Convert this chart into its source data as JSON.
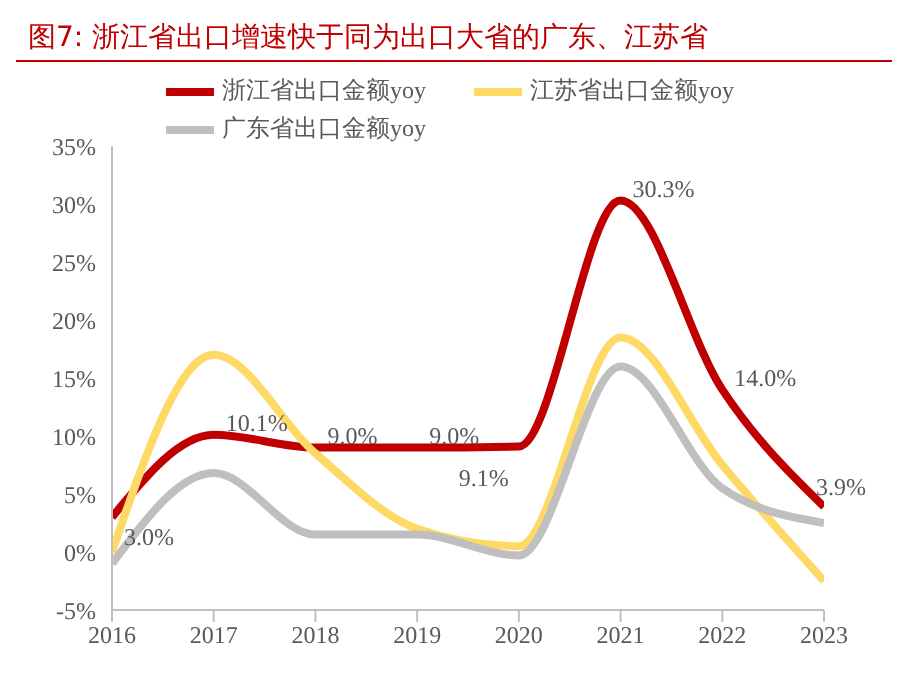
{
  "chart_data": {
    "type": "line",
    "title": "图7:   浙江省出口增速快于同为出口大省的广东、江苏省",
    "categories": [
      "2016",
      "2017",
      "2018",
      "2019",
      "2020",
      "2021",
      "2022",
      "2023"
    ],
    "series": [
      {
        "name": "浙江省出口金额yoy",
        "color": "#c00000",
        "values": [
          3.0,
          10.1,
          9.0,
          9.0,
          9.1,
          30.3,
          14.0,
          3.9
        ],
        "value_labels": [
          "3.0%",
          "10.1%",
          "9.0%",
          "9.0%",
          "9.1%",
          "30.3%",
          "14.0%",
          "3.9%"
        ]
      },
      {
        "name": "江苏省出口金额yoy",
        "color": "#ffd966",
        "values": [
          0,
          17,
          8.5,
          2,
          0.5,
          18.5,
          7.5,
          -2.5
        ]
      },
      {
        "name": "广东省出口金额yoy",
        "color": "#bfbfbf",
        "values": [
          -1,
          6.8,
          1.5,
          1.5,
          -0.3,
          16,
          5.5,
          2.5
        ]
      }
    ],
    "ylim": [
      -5,
      35
    ],
    "yticks": [
      {
        "value": -5,
        "label": "-5%"
      },
      {
        "value": 0,
        "label": "0%"
      },
      {
        "value": 5,
        "label": "5%"
      },
      {
        "value": 10,
        "label": "10%"
      },
      {
        "value": 15,
        "label": "15%"
      },
      {
        "value": 20,
        "label": "20%"
      },
      {
        "value": 25,
        "label": "25%"
      },
      {
        "value": 30,
        "label": "30%"
      },
      {
        "value": 35,
        "label": "35%"
      }
    ],
    "grid": false,
    "legend": "top",
    "marker": "none",
    "line_style": "solid"
  }
}
